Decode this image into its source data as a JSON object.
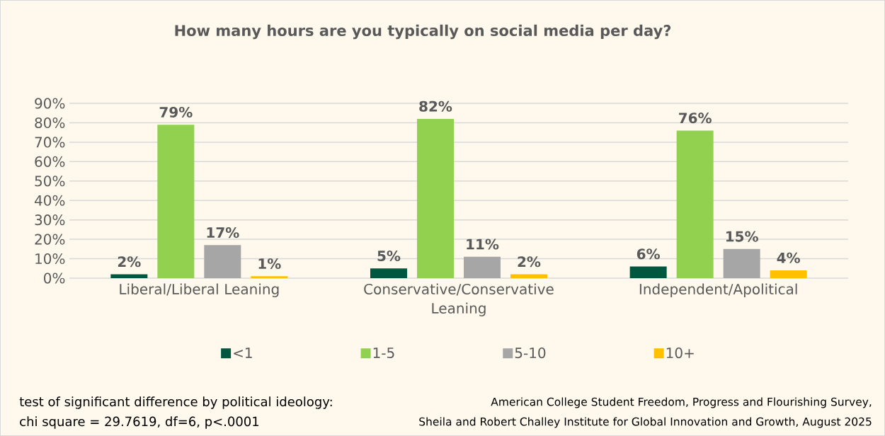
{
  "chart_data": {
    "type": "bar",
    "title": "How many hours are you typically on social media per day?",
    "categories": [
      "Liberal/Liberal Leaning",
      "Conservative/Conservative Leaning",
      "Independent/Apolitical"
    ],
    "series": [
      {
        "name": "<1",
        "color": "#00573f",
        "values": [
          2,
          5,
          6
        ],
        "value_labels": [
          "2%",
          "5%",
          "6%"
        ]
      },
      {
        "name": "1-5",
        "color": "#92d050",
        "values": [
          79,
          82,
          76
        ],
        "value_labels": [
          "79%",
          "82%",
          "76%"
        ]
      },
      {
        "name": "5-10",
        "color": "#a6a6a6",
        "values": [
          17,
          11,
          15
        ],
        "value_labels": [
          "17%",
          "11%",
          "15%"
        ]
      },
      {
        "name": "10+",
        "color": "#ffc000",
        "values": [
          1,
          2,
          4
        ],
        "value_labels": [
          "1%",
          "2%",
          "4%"
        ]
      }
    ],
    "ylim": [
      0,
      90
    ],
    "yticks": [
      {
        "value": 0,
        "label": "0%"
      },
      {
        "value": 10,
        "label": "10%"
      },
      {
        "value": 20,
        "label": "20%"
      },
      {
        "value": 30,
        "label": "30%"
      },
      {
        "value": 40,
        "label": "40%"
      },
      {
        "value": 50,
        "label": "50%"
      },
      {
        "value": 60,
        "label": "60%"
      },
      {
        "value": 70,
        "label": "70%"
      },
      {
        "value": 80,
        "label": "80%"
      },
      {
        "value": 90,
        "label": "90%"
      }
    ],
    "grid": "y",
    "legend": "bottom",
    "annotations": [
      "test of significant difference by political ideology:",
      "chi square = 29.7619, df=6, p<.0001",
      "American College Student Freedom, Progress and Flourishing Survey,",
      "Sheila and Robert Challey Institute for Global Innovation and Growth, August 2025"
    ]
  }
}
